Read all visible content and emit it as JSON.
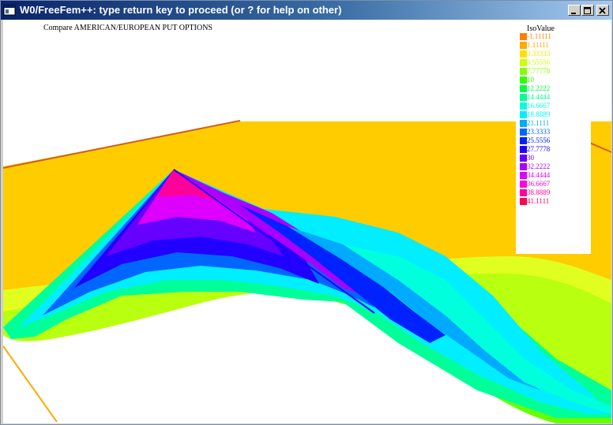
{
  "window": {
    "title": "W0/FreeFem++: type return key to proceed (or ? for help on other)",
    "icon": "app-window-icon",
    "controls": {
      "minimize": "minimize-icon",
      "maximize": "maximize-icon",
      "close": "close-icon"
    }
  },
  "plot": {
    "title": "Compare AMERICAN/EUROPEAN PUT OPTIONS",
    "legend": {
      "heading": "IsoValue",
      "items": [
        {
          "label": "-1.11111",
          "color": "#ff8000"
        },
        {
          "label": "1.11111",
          "color": "#ffaa00"
        },
        {
          "label": "3.33333",
          "color": "#ffe000"
        },
        {
          "label": "5.55556",
          "color": "#ccff00"
        },
        {
          "label": "7.77778",
          "color": "#88ff00"
        },
        {
          "label": "10",
          "color": "#33ff00"
        },
        {
          "label": "12.2222",
          "color": "#00ff44"
        },
        {
          "label": "14.4444",
          "color": "#00ff99"
        },
        {
          "label": "16.6667",
          "color": "#00ffdd"
        },
        {
          "label": "18.8889",
          "color": "#00eeff"
        },
        {
          "label": "21.1111",
          "color": "#00aaff"
        },
        {
          "label": "23.3333",
          "color": "#0066ff"
        },
        {
          "label": "25.5556",
          "color": "#0022ff"
        },
        {
          "label": "27.7778",
          "color": "#2200ff"
        },
        {
          "label": "30",
          "color": "#6600ff"
        },
        {
          "label": "32.2222",
          "color": "#aa00ff"
        },
        {
          "label": "34.4444",
          "color": "#dd00ff"
        },
        {
          "label": "36.6667",
          "color": "#ff00dd"
        },
        {
          "label": "38.8889",
          "color": "#ff0099"
        },
        {
          "label": "41.1111",
          "color": "#ff0055"
        }
      ]
    }
  }
}
